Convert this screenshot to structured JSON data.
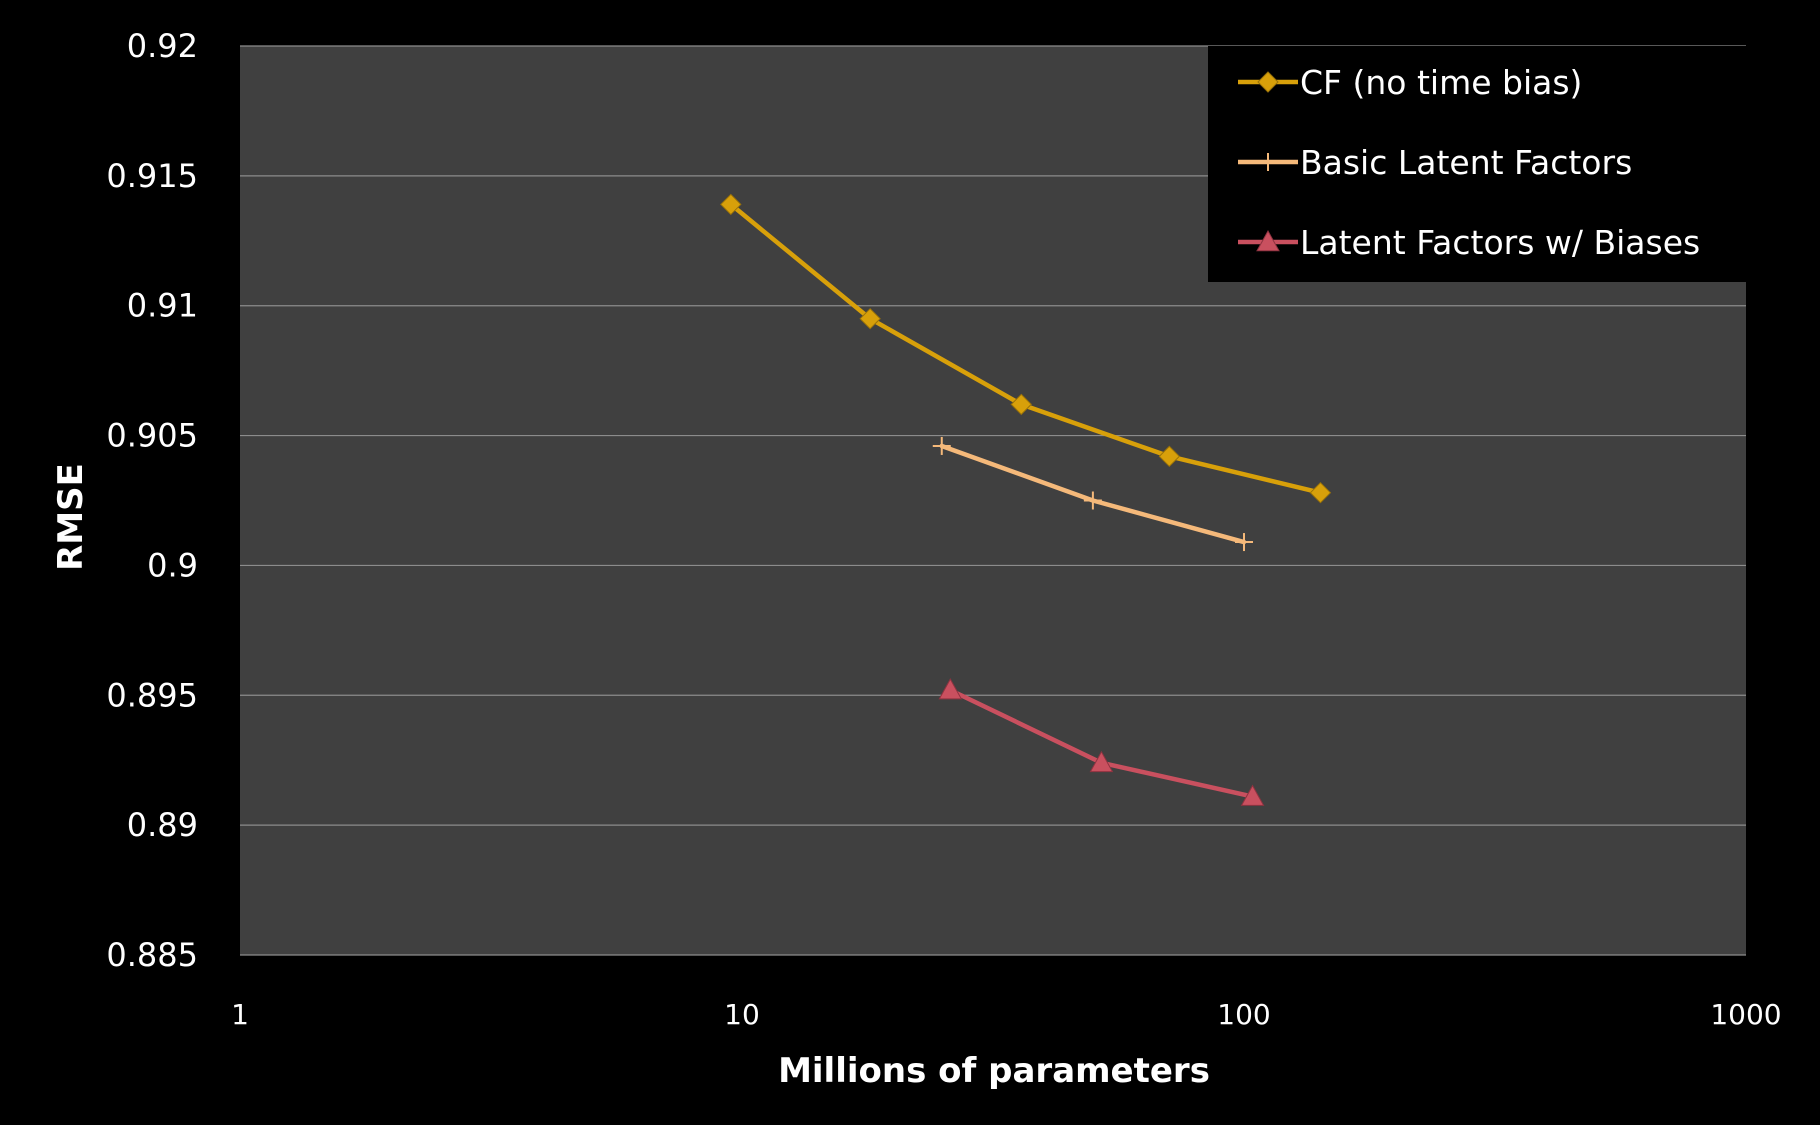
{
  "chart_data": {
    "type": "line",
    "title": "",
    "xlabel": "Millions of parameters",
    "ylabel": "RMSE",
    "x_scale": "log",
    "xlim": [
      1,
      1000
    ],
    "ylim": [
      0.885,
      0.92
    ],
    "x_ticks": [
      1,
      10,
      100,
      1000
    ],
    "x_tick_labels": [
      "1",
      "10",
      "100",
      "1000"
    ],
    "y_ticks": [
      0.885,
      0.89,
      0.895,
      0.9,
      0.905,
      0.91,
      0.915,
      0.92
    ],
    "y_tick_labels": [
      "0.885",
      "0.89",
      "0.895",
      "0.9",
      "0.905",
      "0.91",
      "0.915",
      "0.92"
    ],
    "grid": "horizontal",
    "legend_position": "top-right",
    "series": [
      {
        "name": "CF (no time bias)",
        "color": "#D8A00A",
        "marker": "diamond",
        "x": [
          9.5,
          18,
          36,
          71,
          142
        ],
        "y": [
          0.9139,
          0.9095,
          0.9062,
          0.9042,
          0.9028
        ]
      },
      {
        "name": "Basic Latent Factors",
        "color": "#F5B97A",
        "marker": "plus",
        "x": [
          25,
          50,
          100
        ],
        "y": [
          0.9046,
          0.9025,
          0.9009
        ]
      },
      {
        "name": "Latent Factors w/ Biases",
        "color": "#C9505F",
        "marker": "triangle",
        "x": [
          26,
          52,
          104
        ],
        "y": [
          0.8952,
          0.8924,
          0.8911
        ]
      }
    ]
  },
  "colors": {
    "background": "#000000",
    "plot_area": "#404040",
    "gridline": "#8C8C8C",
    "text": "#FFFFFF"
  }
}
